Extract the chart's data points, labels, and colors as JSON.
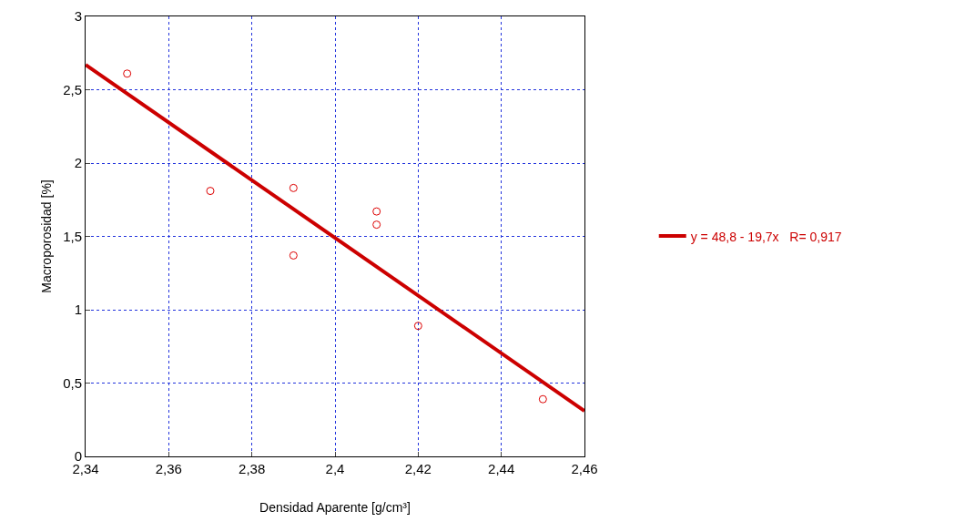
{
  "chart_data": {
    "type": "scatter",
    "xlabel": "Densidad Aparente [g/cm³]",
    "ylabel": "Macroporosidad [%]",
    "series": [
      {
        "color": "#dd0000",
        "marker": "circle",
        "x": [
          2.35,
          2.37,
          2.39,
          2.39,
          2.41,
          2.41,
          2.42,
          2.45
        ],
        "values": [
          2.61,
          1.81,
          1.83,
          1.37,
          1.67,
          1.58,
          0.89,
          0.39
        ]
      },
      {
        "type": "line",
        "name": "y = 48,8 - 19,7x   R= 0,917",
        "color": "#cc0000",
        "line_style": "solid",
        "x": [
          2.34,
          2.46
        ],
        "values": [
          2.67,
          0.31
        ]
      }
    ],
    "xlim": [
      2.34,
      2.46
    ],
    "ylim": [
      0,
      3
    ],
    "xticks": [
      {
        "value": 2.34,
        "label": "2,34"
      },
      {
        "value": 2.36,
        "label": "2,36"
      },
      {
        "value": 2.38,
        "label": "2,38"
      },
      {
        "value": 2.4,
        "label": "2,4"
      },
      {
        "value": 2.42,
        "label": "2,42"
      },
      {
        "value": 2.44,
        "label": "2,44"
      },
      {
        "value": 2.46,
        "label": "2,46"
      }
    ],
    "yticks": [
      0,
      {
        "value": 0.5,
        "label": "0,5"
      },
      1,
      {
        "value": 1.5,
        "label": "1,5"
      },
      2,
      {
        "value": 2.5,
        "label": "2,5"
      },
      3
    ],
    "grid": true,
    "legend": "right"
  }
}
